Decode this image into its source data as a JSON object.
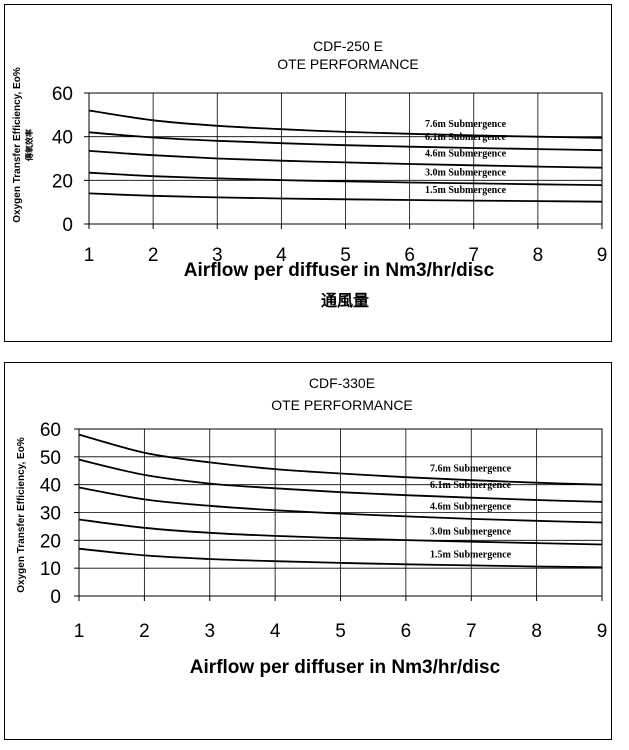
{
  "chart_data": [
    {
      "type": "line",
      "title": "CDF-250 E",
      "subtitle": "OTE PERFORMANCE",
      "xlabel": "Airflow per diffuser in Nm3/hr/disc",
      "xlabel_secondary": "通風量",
      "ylabel": "Oxygen Transfer Efficiency, Eo%",
      "ylabel_secondary": "傳氧效率",
      "xlim": [
        1,
        9
      ],
      "ylim": [
        0,
        60
      ],
      "xticks": [
        1,
        2,
        3,
        4,
        5,
        6,
        7,
        8,
        9
      ],
      "yticks": [
        0,
        20,
        40,
        60
      ],
      "grid": true,
      "x": [
        1,
        2,
        3,
        4,
        5,
        6,
        7,
        8,
        9
      ],
      "series": [
        {
          "name": "7.6m Submergence",
          "values": [
            52,
            47.5,
            45,
            43.4,
            42.2,
            41.3,
            40.6,
            40,
            39.5
          ]
        },
        {
          "name": "6.1m Submergence",
          "values": [
            42,
            39.6,
            38.1,
            37,
            36.1,
            35.4,
            34.8,
            34.3,
            33.8
          ]
        },
        {
          "name": "4.6m Submergence",
          "values": [
            33.5,
            31.5,
            30,
            29,
            28.2,
            27.5,
            26.9,
            26.3,
            25.8
          ]
        },
        {
          "name": "3.0m Submergence",
          "values": [
            23.5,
            21.9,
            20.9,
            20.1,
            19.5,
            19,
            18.6,
            18.2,
            17.8
          ]
        },
        {
          "name": "1.5m Submergence",
          "values": [
            14,
            12.9,
            12.2,
            11.7,
            11.3,
            11,
            10.7,
            10.5,
            10.2
          ]
        }
      ]
    },
    {
      "type": "line",
      "title": "CDF-330E",
      "subtitle": "OTE PERFORMANCE",
      "xlabel": "Airflow per diffuser in Nm3/hr/disc",
      "ylabel": "Oxygen Transfer Efficiency, Eo%",
      "xlim": [
        1,
        9
      ],
      "ylim": [
        0,
        60
      ],
      "xticks": [
        1,
        2,
        3,
        4,
        5,
        6,
        7,
        8,
        9
      ],
      "yticks": [
        0,
        10,
        20,
        30,
        40,
        50,
        60
      ],
      "grid": true,
      "x": [
        1,
        2,
        3,
        4,
        5,
        6,
        7,
        8,
        9
      ],
      "series": [
        {
          "name": "7.6m Submergence",
          "values": [
            58,
            51.5,
            48,
            45.6,
            44,
            42.7,
            41.6,
            40.7,
            40
          ]
        },
        {
          "name": "6.1m Submergence",
          "values": [
            49,
            43.5,
            40.4,
            38.7,
            37.3,
            36.2,
            35.3,
            34.5,
            33.8
          ]
        },
        {
          "name": "4.6m Submergence",
          "values": [
            39,
            34.7,
            32.4,
            30.8,
            29.6,
            28.6,
            27.7,
            27,
            26.4
          ]
        },
        {
          "name": "3.0m Submergence",
          "values": [
            27.5,
            24.5,
            22.7,
            21.6,
            20.8,
            20.1,
            19.5,
            19,
            18.5
          ]
        },
        {
          "name": "1.5m Submergence",
          "values": [
            17,
            14.6,
            13.3,
            12.5,
            11.9,
            11.4,
            11,
            10.6,
            10.3
          ]
        }
      ]
    }
  ]
}
